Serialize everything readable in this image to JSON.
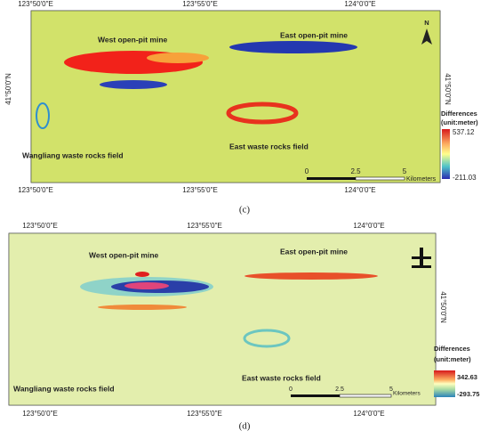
{
  "panels": [
    {
      "label": "(c)",
      "lon_labels": [
        "123°50'0\"E",
        "123°55'0\"E",
        "124°0'0\"E"
      ],
      "lat_label": "41°50'0\"N",
      "annotations": [
        "West open-pit mine",
        "East open-pit mine",
        "East waste rocks field",
        "Wangliang waste rocks field"
      ],
      "north": "N",
      "legend": {
        "title": "Differences",
        "unit": "(unit:meter)",
        "max": 537.12,
        "min": -211.03
      },
      "scale": {
        "ticks": [
          0,
          2.5,
          5
        ],
        "unit": "Kilometers"
      }
    },
    {
      "label": "(d)",
      "lon_labels": [
        "123°50'0\"E",
        "123°55'0\"E",
        "124°0'0\"E"
      ],
      "lat_label": "41°50'0\"N",
      "annotations": [
        "West open-pit mine",
        "East open-pit mine",
        "East waste rocks field",
        "Wangliang waste rocks field"
      ],
      "legend": {
        "title": "Differences",
        "unit": "(unit:meter)",
        "max": 342.63,
        "min": -293.75
      },
      "scale": {
        "ticks": [
          0,
          2.5,
          5
        ],
        "unit": "Kilometers"
      }
    }
  ]
}
